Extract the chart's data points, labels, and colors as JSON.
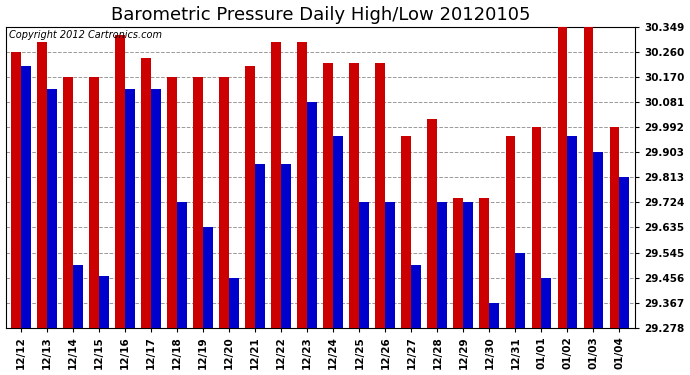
{
  "title": "Barometric Pressure Daily High/Low 20120105",
  "copyright": "Copyright 2012 Cartronics.com",
  "dates": [
    "12/12",
    "12/13",
    "12/14",
    "12/15",
    "12/16",
    "12/17",
    "12/18",
    "12/19",
    "12/20",
    "12/21",
    "12/22",
    "12/23",
    "12/24",
    "12/25",
    "12/26",
    "12/27",
    "12/28",
    "12/29",
    "12/30",
    "12/31",
    "01/01",
    "01/02",
    "01/03",
    "01/04"
  ],
  "highs": [
    30.26,
    30.295,
    30.17,
    30.17,
    30.32,
    30.24,
    30.17,
    30.17,
    30.17,
    30.21,
    30.295,
    30.295,
    30.22,
    30.22,
    30.22,
    29.96,
    30.02,
    29.74,
    29.74,
    29.96,
    29.992,
    30.349,
    30.349,
    29.992
  ],
  "lows": [
    30.21,
    30.13,
    29.5,
    29.46,
    30.13,
    30.13,
    29.724,
    29.635,
    29.456,
    29.86,
    29.86,
    30.081,
    29.96,
    29.724,
    29.724,
    29.5,
    29.724,
    29.724,
    29.367,
    29.545,
    29.456,
    29.96,
    29.903,
    29.813
  ],
  "bar_color_high": "#cc0000",
  "bar_color_low": "#0000cc",
  "background_color": "#ffffff",
  "grid_color": "#999999",
  "yticks": [
    29.278,
    29.367,
    29.456,
    29.545,
    29.635,
    29.724,
    29.813,
    29.903,
    29.992,
    30.081,
    30.17,
    30.26,
    30.349
  ],
  "ymin": 29.278,
  "ymax": 30.349,
  "title_fontsize": 13,
  "tick_fontsize": 7.5,
  "copyright_fontsize": 7
}
